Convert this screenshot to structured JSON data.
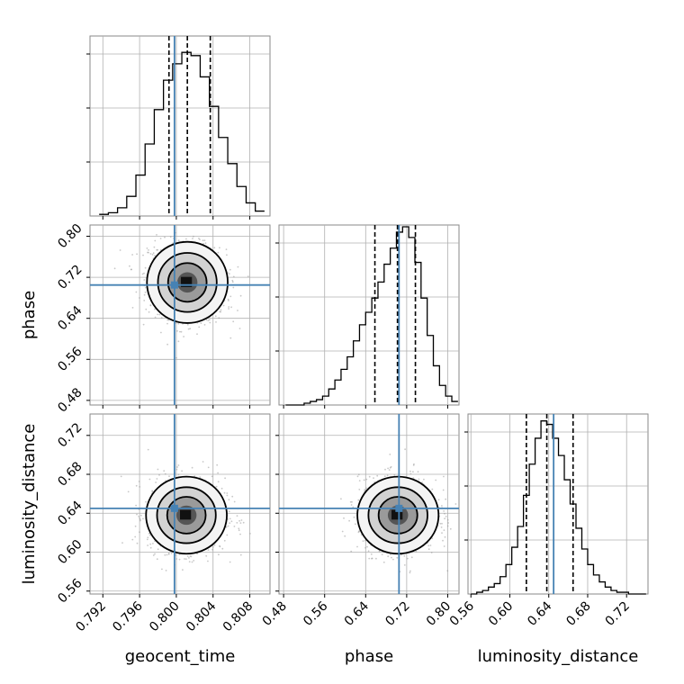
{
  "chart_data": {
    "type": "corner",
    "title": "",
    "parameters": [
      "geocent_time",
      "phase",
      "luminosity_distance"
    ],
    "truths": [
      0.7998,
      0.705,
      0.645
    ],
    "injection_color": "#4682b4",
    "grid": true,
    "histogram_color": "#000000",
    "scatter_color": "#9a9a9a",
    "axes": [
      {
        "name": "geocent_time",
        "label": "geocent_time",
        "range": [
          0.7906,
          0.8102
        ],
        "ticks": [
          0.792,
          0.796,
          0.8,
          0.804,
          0.808
        ],
        "tick_labels": [
          "0.792",
          "0.796",
          "0.800",
          "0.804",
          "0.808"
        ]
      },
      {
        "name": "phase",
        "label": "phase",
        "range": [
          0.471,
          0.822
        ],
        "ticks": [
          0.48,
          0.56,
          0.64,
          0.72,
          0.8
        ],
        "tick_labels": [
          "0.48",
          "0.56",
          "0.64",
          "0.72",
          "0.80"
        ]
      },
      {
        "name": "luminosity_distance",
        "label": "luminosity_distance",
        "range": [
          0.557,
          0.742
        ],
        "ticks": [
          0.56,
          0.6,
          0.64,
          0.68,
          0.72
        ],
        "tick_labels": [
          "0.56",
          "0.60",
          "0.64",
          "0.68",
          "0.72"
        ]
      }
    ],
    "histograms": [
      {
        "param": "geocent_time",
        "bin_edges": [
          0.7916,
          0.7926,
          0.7936,
          0.7946,
          0.7956,
          0.7966,
          0.7976,
          0.7986,
          0.7996,
          0.8006,
          0.8016,
          0.8026,
          0.8036,
          0.8046,
          0.8056,
          0.8066,
          0.8076,
          0.8086,
          0.8096
        ],
        "counts": [
          1,
          2,
          5,
          12,
          25,
          44,
          65,
          83,
          93,
          100,
          98,
          85,
          67,
          48,
          32,
          18,
          8,
          3
        ],
        "quantiles": [
          0.7992,
          0.8012,
          0.8037
        ],
        "ymax": 110
      },
      {
        "param": "phase",
        "bin_edges": [
          0.484,
          0.496,
          0.508,
          0.52,
          0.532,
          0.544,
          0.556,
          0.568,
          0.58,
          0.592,
          0.604,
          0.616,
          0.628,
          0.64,
          0.652,
          0.664,
          0.676,
          0.688,
          0.7,
          0.712,
          0.724,
          0.736,
          0.748,
          0.76,
          0.772,
          0.784,
          0.796,
          0.808,
          0.82
        ],
        "counts": [
          0,
          0,
          0,
          1,
          2,
          3,
          5,
          9,
          14,
          20,
          27,
          36,
          45,
          52,
          60,
          69,
          79,
          88,
          97,
          100,
          94,
          80,
          60,
          39,
          22,
          11,
          5,
          2
        ],
        "quantiles": [
          0.658,
          0.702,
          0.737
        ],
        "ymax": 101
      },
      {
        "param": "luminosity_distance",
        "bin_edges": [
          0.56,
          0.566,
          0.572,
          0.578,
          0.584,
          0.59,
          0.596,
          0.602,
          0.608,
          0.614,
          0.62,
          0.626,
          0.632,
          0.638,
          0.644,
          0.65,
          0.656,
          0.662,
          0.668,
          0.674,
          0.68,
          0.686,
          0.692,
          0.698,
          0.704,
          0.71,
          0.716,
          0.722,
          0.728,
          0.734,
          0.74
        ],
        "counts": [
          0,
          1,
          2,
          4,
          6,
          10,
          17,
          27,
          39,
          57,
          75,
          90,
          100,
          98,
          90,
          80,
          66,
          52,
          38,
          26,
          17,
          11,
          7,
          4,
          2,
          1,
          1,
          0,
          0,
          0
        ],
        "quantiles": [
          0.617,
          0.638,
          0.665
        ],
        "ymax": 104
      }
    ],
    "pairs": [
      {
        "x": "geocent_time",
        "y": "phase",
        "mean": [
          0.8012,
          0.71
        ],
        "sd": [
          0.002,
          0.036
        ],
        "rho": -0.15
      },
      {
        "x": "geocent_time",
        "y": "luminosity_distance",
        "mean": [
          0.8011,
          0.638
        ],
        "sd": [
          0.002,
          0.018
        ],
        "rho": 0.0
      },
      {
        "x": "phase",
        "y": "luminosity_distance",
        "mean": [
          0.703,
          0.638
        ],
        "sd": [
          0.036,
          0.018
        ],
        "rho": 0.0
      }
    ]
  }
}
